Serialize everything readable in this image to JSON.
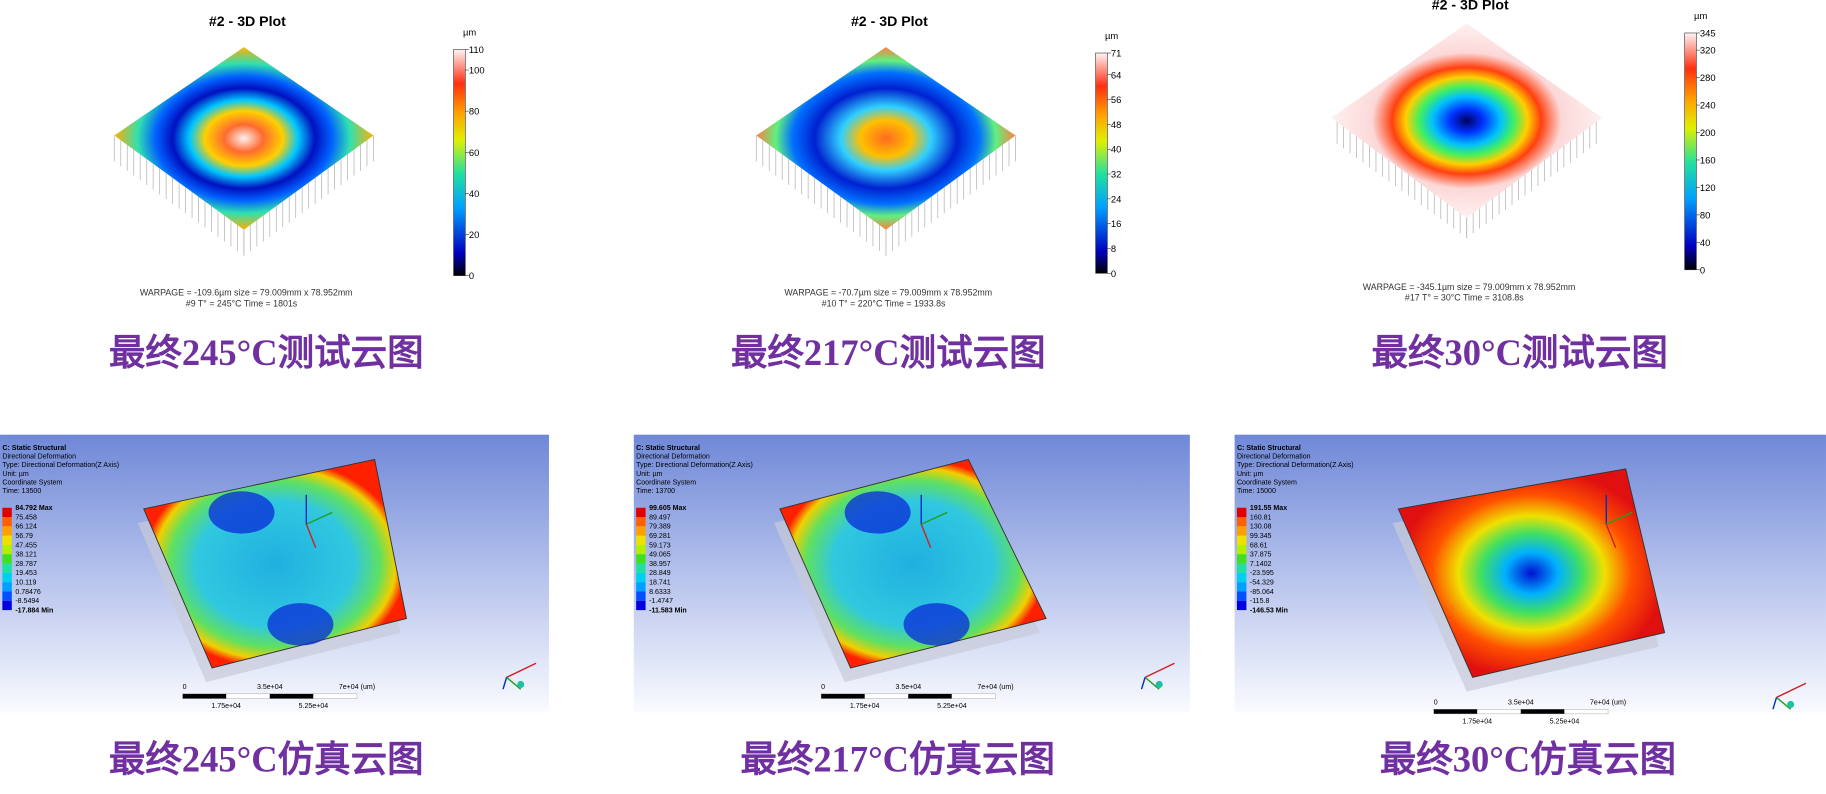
{
  "top_panels": [
    {
      "title": "#2 - 3D Plot",
      "unit": "µm",
      "ticks": [
        0,
        20,
        40,
        60,
        80,
        100,
        110
      ],
      "info1": "WARPAGE = -109.6µm   size = 79.009mm x 78.952mm",
      "info2": "#9   T° = 245°C   Time = 1801s",
      "caption": "最终245°C测试云图"
    },
    {
      "title": "#2 - 3D Plot",
      "unit": "µm",
      "ticks": [
        0,
        8,
        16,
        24,
        32,
        40,
        48,
        56,
        64,
        71
      ],
      "info1": "WARPAGE = -70.7µm   size = 79.009mm x 78.952mm",
      "info2": "#10   T° = 220°C   Time = 1933.8s",
      "caption": "最终217°C测试云图"
    },
    {
      "title": "#2 - 3D Plot",
      "unit": "µm",
      "ticks": [
        0,
        40,
        80,
        120,
        160,
        200,
        240,
        280,
        320,
        345
      ],
      "info1": "WARPAGE = -345.1µm   size = 79.009mm x 78.952mm",
      "info2": "#17   T° = 30°C   Time = 3108.8s",
      "caption": "最终30°C测试云图"
    }
  ],
  "bottom_panels": [
    {
      "header": [
        "C: Static Structural",
        "Directional Deformation",
        "Type: Directional Deformation(Z Axis)",
        "Unit: µm",
        "Coordinate System",
        "Time: 13500"
      ],
      "legend": [
        "84.792 Max",
        "75.458",
        "66.124",
        "56.79",
        "47.455",
        "38.121",
        "28.787",
        "19.453",
        "10.119",
        "0.78476",
        "-8.5494",
        "-17.884 Min"
      ],
      "scale": [
        "0",
        "3.5e+04",
        "7e+04 (um)",
        "1.75e+04",
        "5.25e+04"
      ],
      "caption": "最终245°C仿真云图"
    },
    {
      "header": [
        "C: Static Structural",
        "Directional Deformation",
        "Type: Directional Deformation(Z Axis)",
        "Unit: µm",
        "Coordinate System",
        "Time: 13700"
      ],
      "legend": [
        "99.605 Max",
        "89.497",
        "79.389",
        "69.281",
        "59.173",
        "49.065",
        "38.957",
        "28.849",
        "18.741",
        "8.6333",
        "-1.4747",
        "-11.583 Min"
      ],
      "scale": [
        "0",
        "3.5e+04",
        "7e+04 (um)",
        "1.75e+04",
        "5.25e+04"
      ],
      "caption": "最终217°C仿真云图"
    },
    {
      "header": [
        "C: Static Structural",
        "Directional Deformation",
        "Type: Directional Deformation(Z Axis)",
        "Unit: µm",
        "Coordinate System",
        "Time: 15000"
      ],
      "legend": [
        "191.55 Max",
        "160.81",
        "130.08",
        "99.345",
        "68.61",
        "37.875",
        "7.1402",
        "-23.595",
        "-54.329",
        "-85.064",
        "-115.8",
        "-146.53 Min"
      ],
      "scale": [
        "0",
        "3.5e+04",
        "7e+04 (um)",
        "1.75e+04",
        "5.25e+04"
      ],
      "caption": "最终30°C仿真云图"
    }
  ]
}
